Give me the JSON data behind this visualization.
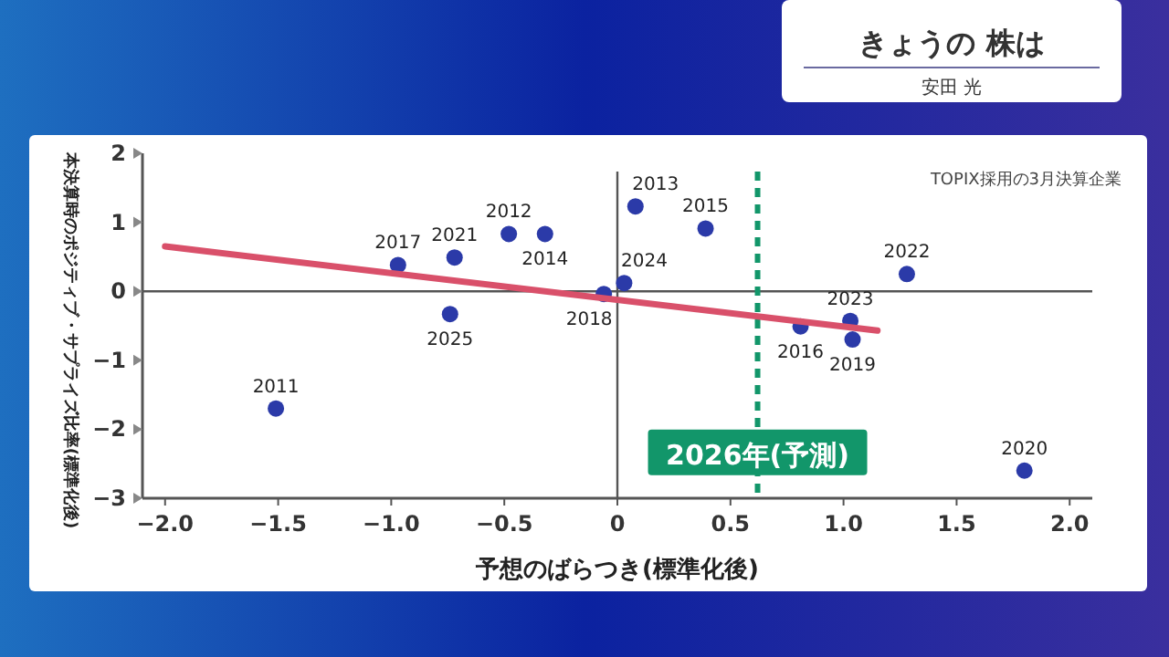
{
  "chart_data": {
    "type": "scatter",
    "title": "きょうの 株は",
    "subtitle": "安田 光",
    "xlabel": "予想のばらつき(標準化後)",
    "ylabel": "本決算時のポジティブ・サプライズ比率(標準化後)",
    "xlim": [
      -2.1,
      2.1
    ],
    "ylim": [
      -3,
      2
    ],
    "xticks": [
      {
        "value": -2,
        "label": "−2.0"
      },
      {
        "value": -1.5,
        "label": "−1.5"
      },
      {
        "value": -1,
        "label": "−1.0"
      },
      {
        "value": -0.5,
        "label": "−0.5"
      },
      {
        "value": 0,
        "label": "0"
      },
      {
        "value": 0.5,
        "label": "0.5"
      },
      {
        "value": 1,
        "label": "1.0"
      },
      {
        "value": 1.5,
        "label": "1.5"
      },
      {
        "value": 2,
        "label": "2.0"
      }
    ],
    "yticks": [
      2,
      1,
      0,
      {
        "value": -1,
        "label": "−1"
      },
      {
        "value": -2,
        "label": "−2"
      },
      {
        "value": -3,
        "label": "−3"
      }
    ],
    "grid": false,
    "marker": "circle",
    "series": [
      {
        "type": "scatter",
        "color": "#2b3aa8",
        "x": [
          -1.51,
          -0.97,
          -0.72,
          -0.48,
          -0.32,
          -0.74,
          -0.06,
          0.03,
          0.08,
          0.39,
          0.81,
          1.03,
          1.04,
          1.28,
          1.8
        ],
        "values": [
          -1.7,
          0.38,
          0.49,
          0.83,
          0.83,
          -0.33,
          -0.04,
          0.12,
          1.23,
          0.91,
          -0.51,
          -0.43,
          -0.7,
          0.25,
          -2.6
        ]
      },
      {
        "type": "line",
        "color": "#d9506a",
        "marker": "none",
        "x": [
          -2,
          1.15
        ],
        "values": [
          0.65,
          -0.57
        ]
      }
    ],
    "ref_lines": [
      {
        "axis": "x",
        "value": 0,
        "color": "#555555",
        "line_style": "solid"
      },
      {
        "axis": "y",
        "value": 0,
        "color": "#555555",
        "line_style": "solid"
      },
      {
        "axis": "x",
        "value": 0.62,
        "label": "2026年(予測)",
        "color": "#12966a",
        "line_style": "dashed"
      }
    ],
    "annotations": [
      {
        "text": "2011",
        "x": -1.51,
        "y": -1.7
      },
      {
        "text": "2017",
        "x": -0.97,
        "y": 0.38
      },
      {
        "text": "2021",
        "x": -0.72,
        "y": 0.49
      },
      {
        "text": "2012",
        "x": -0.48,
        "y": 0.83
      },
      {
        "text": "2014",
        "x": -0.32,
        "y": 0.83
      },
      {
        "text": "2025",
        "x": -0.74,
        "y": -0.33
      },
      {
        "text": "2018",
        "x": -0.06,
        "y": -0.04
      },
      {
        "text": "2024",
        "x": 0.03,
        "y": 0.12
      },
      {
        "text": "2013",
        "x": 0.08,
        "y": 1.23
      },
      {
        "text": "2015",
        "x": 0.39,
        "y": 0.91
      },
      {
        "text": "2016",
        "x": 0.81,
        "y": -0.51
      },
      {
        "text": "2023",
        "x": 1.03,
        "y": -0.43
      },
      {
        "text": "2019",
        "x": 1.04,
        "y": -0.7
      },
      {
        "text": "2022",
        "x": 1.28,
        "y": 0.25
      },
      {
        "text": "2020",
        "x": 1.8,
        "y": -2.6
      },
      "TOPIX採用の3月決算企業"
    ]
  }
}
